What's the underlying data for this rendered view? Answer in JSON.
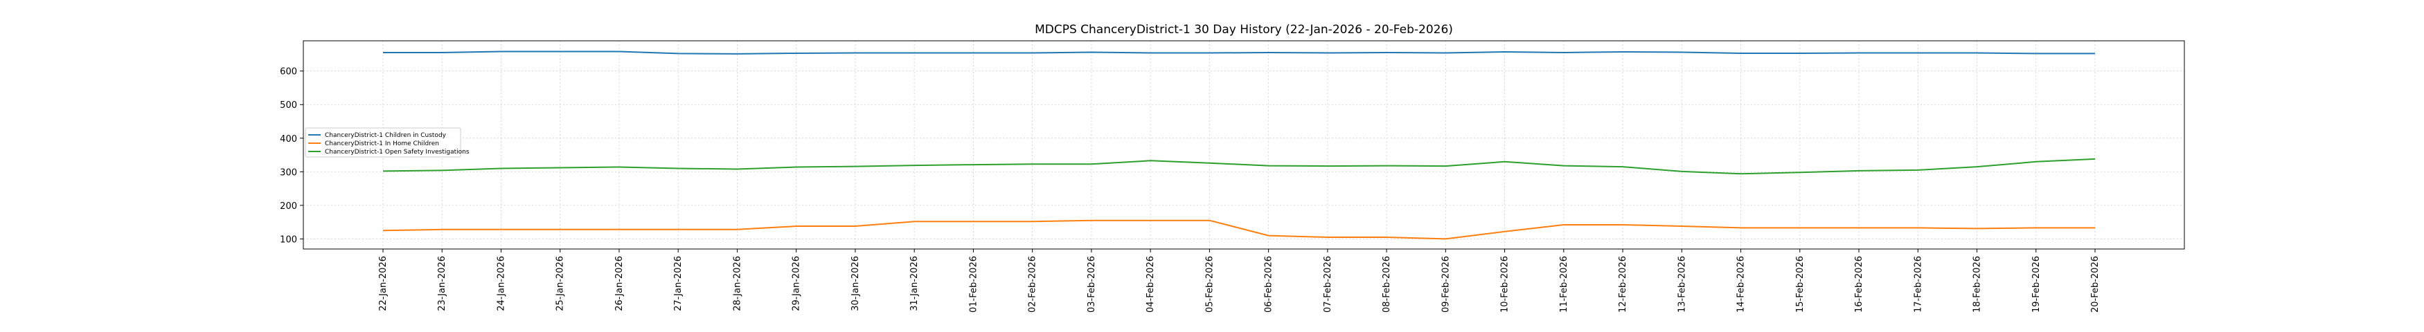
{
  "chart_data": {
    "type": "line",
    "title": "MDCPS ChanceryDistrict-1 30 Day History (22-Jan-2026 - 20-Feb-2026)",
    "xlabel": "",
    "ylabel": "",
    "ylim": [
      70,
      690
    ],
    "yticks": [
      100,
      200,
      300,
      400,
      500,
      600
    ],
    "grid": true,
    "legend_position": "center-left",
    "categories": [
      "22-Jan-2026",
      "23-Jan-2026",
      "24-Jan-2026",
      "25-Jan-2026",
      "26-Jan-2026",
      "27-Jan-2026",
      "28-Jan-2026",
      "29-Jan-2026",
      "30-Jan-2026",
      "31-Jan-2026",
      "01-Feb-2026",
      "02-Feb-2026",
      "03-Feb-2026",
      "04-Feb-2026",
      "05-Feb-2026",
      "06-Feb-2026",
      "07-Feb-2026",
      "08-Feb-2026",
      "09-Feb-2026",
      "10-Feb-2026",
      "11-Feb-2026",
      "12-Feb-2026",
      "13-Feb-2026",
      "14-Feb-2026",
      "15-Feb-2026",
      "16-Feb-2026",
      "17-Feb-2026",
      "18-Feb-2026",
      "19-Feb-2026",
      "20-Feb-2026"
    ],
    "series": [
      {
        "name": "ChanceryDistrict-1 Children in Custody",
        "color": "#1f77b4",
        "values": [
          655,
          655,
          658,
          658,
          658,
          652,
          651,
          653,
          654,
          654,
          654,
          654,
          656,
          654,
          654,
          655,
          654,
          655,
          654,
          657,
          655,
          657,
          656,
          653,
          653,
          654,
          654,
          654,
          652,
          652
        ]
      },
      {
        "name": "ChanceryDistrict-1 In Home Children",
        "color": "#ff7f0e",
        "values": [
          125,
          128,
          128,
          128,
          128,
          128,
          128,
          138,
          138,
          152,
          152,
          152,
          155,
          155,
          155,
          110,
          105,
          105,
          100,
          122,
          142,
          142,
          138,
          133,
          133,
          133,
          133,
          131,
          133,
          133
        ]
      },
      {
        "name": "ChanceryDistrict-1 Open Safety Investigations",
        "color": "#2ca02c",
        "values": [
          302,
          304,
          310,
          312,
          314,
          310,
          308,
          314,
          316,
          319,
          321,
          323,
          323,
          333,
          326,
          318,
          317,
          318,
          317,
          330,
          318,
          315,
          301,
          294,
          298,
          303,
          305,
          315,
          330,
          338
        ]
      }
    ]
  }
}
